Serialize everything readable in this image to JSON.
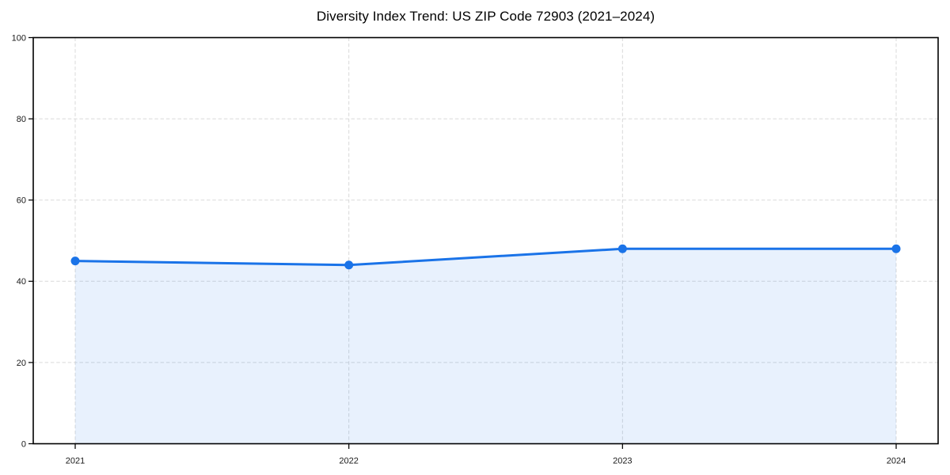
{
  "page": {
    "background": "#ffffff"
  },
  "chart_data": {
    "type": "line",
    "title": "Diversity Index Trend: US ZIP Code 72903 (2021–2024)",
    "categories": [
      "2021",
      "2022",
      "2023",
      "2024"
    ],
    "series": [
      {
        "name": "Diversity Index",
        "values": [
          45,
          44,
          48,
          48
        ]
      }
    ],
    "xlabel": "",
    "ylabel": "",
    "ylim": [
      0,
      100
    ],
    "yticks": [
      0,
      20,
      40,
      60,
      80,
      100
    ],
    "grid": "dashed",
    "legend": "none",
    "marker": "circle",
    "area_fill": true,
    "colors": {
      "line": "#1a73e8",
      "marker": "#1a73e8",
      "area": "rgba(26,115,232,0.10)",
      "grid": "#d9d9d9",
      "spine": "#000000",
      "tick_text": "#1a1a1a",
      "title_text": "#000000"
    }
  }
}
